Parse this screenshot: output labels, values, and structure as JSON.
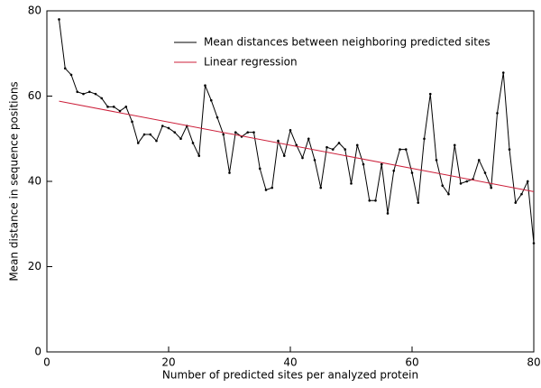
{
  "chart_data": {
    "type": "line",
    "x_label": "Number of predicted sites per analyzed protein",
    "y_label": "Mean distance in sequence positions",
    "xlim": [
      0,
      80
    ],
    "ylim": [
      0,
      80
    ],
    "xticks": [
      0,
      20,
      40,
      60,
      80
    ],
    "yticks": [
      0,
      20,
      40,
      60,
      80
    ],
    "legend": "top",
    "series": [
      {
        "name": "Mean distances between neighboring predicted sites",
        "color": "#000000",
        "markers": true,
        "x": [
          2,
          3,
          4,
          5,
          6,
          7,
          8,
          9,
          10,
          11,
          12,
          13,
          14,
          15,
          16,
          17,
          18,
          19,
          20,
          21,
          22,
          23,
          24,
          25,
          26,
          27,
          28,
          29,
          30,
          31,
          32,
          33,
          34,
          35,
          36,
          37,
          38,
          39,
          40,
          41,
          42,
          43,
          44,
          45,
          46,
          47,
          48,
          49,
          50,
          51,
          52,
          53,
          54,
          55,
          56,
          57,
          58,
          59,
          60,
          61,
          62,
          63,
          64,
          65,
          66,
          67,
          68,
          69,
          70,
          71,
          72,
          73,
          74,
          75,
          76,
          77,
          78,
          79,
          80
        ],
        "values": [
          78,
          66.5,
          65,
          61,
          60.5,
          61,
          60.5,
          59.5,
          57.5,
          57.5,
          56.5,
          57.5,
          54,
          49,
          51,
          51,
          49.5,
          53,
          52.5,
          51.5,
          50,
          53,
          49,
          46,
          62.5,
          59,
          55,
          51,
          42,
          51.5,
          50.5,
          51.5,
          51.5,
          43,
          38,
          38.5,
          49.5,
          46,
          52,
          48.5,
          45.5,
          50,
          45,
          38.5,
          48,
          47.5,
          49,
          47.5,
          39.5,
          48.5,
          44,
          35.5,
          35.5,
          44,
          32.5,
          42.5,
          47.5,
          47.5,
          42,
          35,
          50,
          60.5,
          45,
          39,
          37,
          48.5,
          39.5,
          40,
          40.5,
          45,
          42,
          38.5,
          56,
          65.5,
          47.5,
          35,
          37,
          40,
          25.5
        ]
      },
      {
        "name": "Linear regression",
        "color": "#cc1f3a",
        "markers": false,
        "x": [
          2,
          80
        ],
        "values": [
          58.8,
          37.6
        ]
      }
    ]
  }
}
